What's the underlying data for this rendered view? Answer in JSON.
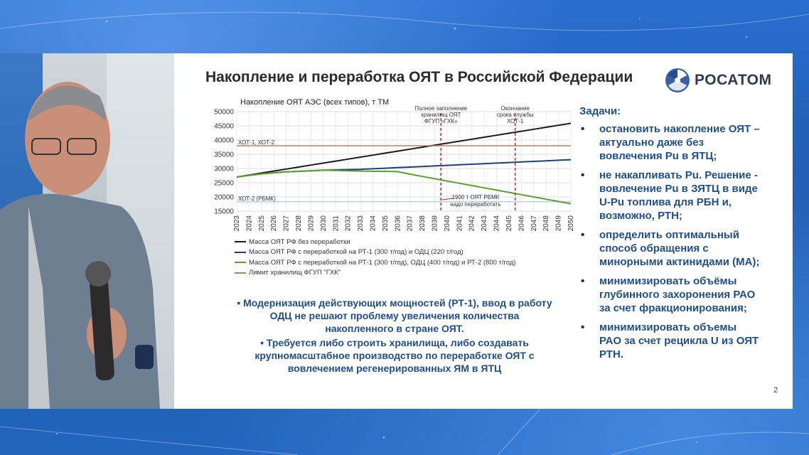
{
  "slide": {
    "title": "Накопление и переработка ОЯТ в Российской Федерации",
    "logo_text": "РОСАТОМ",
    "page_number": "2"
  },
  "chart_data": {
    "type": "line",
    "title": "Накопление ОЯТ АЭС (всех типов), т ТМ",
    "x": [
      2023,
      2024,
      2025,
      2026,
      2027,
      2028,
      2029,
      2030,
      2031,
      2032,
      2033,
      2034,
      2035,
      2036,
      2037,
      2038,
      2039,
      2040,
      2041,
      2042,
      2043,
      2044,
      2045,
      2046,
      2047,
      2048,
      2049,
      2050
    ],
    "ylim": [
      15000,
      50000
    ],
    "yticks": [
      15000,
      20000,
      25000,
      30000,
      35000,
      40000,
      45000,
      50000
    ],
    "grid": true,
    "series": [
      {
        "name": "Масса ОЯТ РФ без переработки",
        "color": "#1a1a1a",
        "values": [
          27000,
          27700,
          28400,
          29100,
          29800,
          30500,
          31200,
          31900,
          32600,
          33300,
          34000,
          34700,
          35400,
          36100,
          36800,
          37500,
          38200,
          38900,
          39600,
          40300,
          41000,
          41700,
          42400,
          43100,
          43800,
          44500,
          45200,
          45900
        ]
      },
      {
        "name": "Масса ОЯТ РФ с переработкой на РТ-1 (300 т/год) и ОДЦ (220 т/год)",
        "color": "#1f3f7a",
        "values": [
          27000,
          27600,
          28100,
          28500,
          28800,
          29000,
          29200,
          29400,
          29500,
          29600,
          29700,
          29900,
          30100,
          30300,
          30500,
          30700,
          30900,
          31100,
          31300,
          31500,
          31700,
          31900,
          32100,
          32300,
          32500,
          32700,
          32900,
          33100
        ]
      },
      {
        "name": "Масса ОЯТ РФ с переработкой на РТ-1 (300 т/год), ОДЦ (400 т/год) и РТ-2 (800 т/год)",
        "color": "#5aa12e",
        "values": [
          27000,
          27600,
          28100,
          28500,
          28800,
          29000,
          29200,
          29400,
          29300,
          29200,
          29100,
          29000,
          29000,
          28900,
          28000,
          27200,
          26400,
          25600,
          24800,
          24000,
          23200,
          22400,
          21600,
          20800,
          20000,
          19200,
          18400,
          17600
        ]
      },
      {
        "name": "Лимит хранилищ ФГУП \"ГХК\"",
        "color": "#b5805a",
        "values": [
          38000,
          38000,
          38000,
          38000,
          38000,
          38000,
          38000,
          38000,
          38000,
          38000,
          38000,
          38000,
          38000,
          38000,
          38000,
          38000,
          38000,
          38000,
          38000,
          38000,
          38000,
          38000,
          38000,
          38000,
          38000,
          38000,
          38000,
          38000
        ]
      }
    ],
    "reference_lines": [
      {
        "label": "ХОТ-1, ХОТ-2",
        "y": 38000,
        "color": "#b5805a"
      },
      {
        "label": "ХОТ-2 (РБМК)",
        "y": 18300,
        "color": "#9cc4e8"
      }
    ],
    "markers": [
      {
        "x": 2039.5,
        "label_lines": [
          "Полное заполнение",
          "хранилищ ОЯТ",
          "ФГУП «ГХК»"
        ],
        "color": "#d22020"
      },
      {
        "x": 2045.5,
        "label_lines": [
          "Окончание",
          "срока службы",
          "ХОТ-1"
        ],
        "color": "#d22020"
      }
    ],
    "annotation": {
      "lines": [
        "1900 т ОЯТ РБМК",
        "надо переработать"
      ]
    }
  },
  "bottom": {
    "items": [
      "Модернизация действующих мощностей (РТ-1), ввод в работу ОДЦ не решают проблему увеличения количества накопленного в стране ОЯТ.",
      "Требуется либо строить хранилища, либо создавать крупномасштабное производство по переработке ОЯТ с вовлечением регенерированных ЯМ в ЯТЦ"
    ],
    "lines": [
      [
        "Модернизация действующих мощностей (РТ-1), ввод в работу",
        "ОДЦ не решают проблему увеличения количества",
        "накопленного в стране ОЯТ."
      ],
      [
        "Требуется либо строить хранилища, либо создавать",
        "крупномасштабное производство по переработке ОЯТ с",
        "вовлечением регенерированных ЯМ в ЯТЦ"
      ]
    ]
  },
  "tasks": {
    "title": "Задачи:",
    "items": [
      [
        "остановить накопление ОЯТ –",
        "актуально даже без",
        "вовлечения Pu в ЯТЦ;"
      ],
      [
        "не накапливать Pu.  Решение -",
        "вовлечение Pu в ЗЯТЦ в виде",
        "U-Pu топлива для РБН и,",
        "возможно, РТН;"
      ],
      [
        "определить оптимальный",
        "способ обращения с",
        "минорными актинидами (МА);"
      ],
      [
        "минимизировать объёмы",
        "глубинного захоронения РАО",
        "за счет фракционирования;"
      ],
      [
        "минимизировать объемы",
        "РАО за счет рецикла U из ОЯТ",
        "РТН."
      ]
    ],
    "bullet": "•"
  }
}
